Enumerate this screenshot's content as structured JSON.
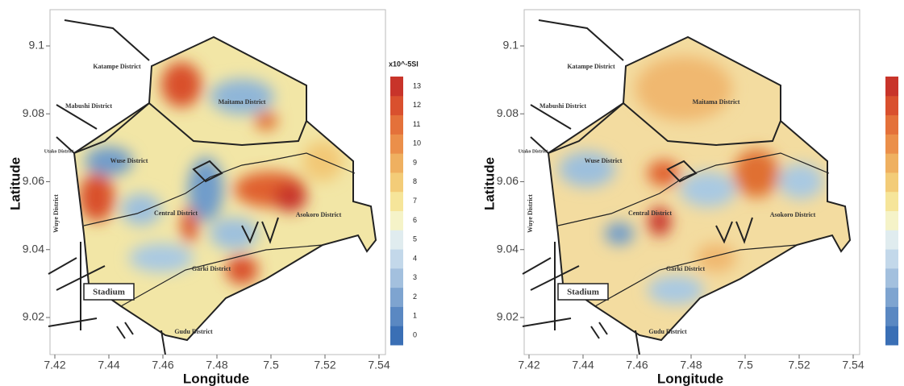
{
  "panels": [
    {
      "x_label": "Longitude",
      "y_label": "Latitude",
      "x_ticks": [
        7.42,
        7.44,
        7.46,
        7.48,
        7.5,
        7.52,
        7.54
      ],
      "y_ticks": [
        9.02,
        9.04,
        9.06,
        9.08,
        9.1
      ],
      "districts": [
        "Katampe District",
        "Mabushi District",
        "Maitama District",
        "Utako District",
        "Wuse District",
        "Central District",
        "Asokoro District",
        "Garki District",
        "Wuye District",
        "Gudu District"
      ],
      "landmark": "Stadium",
      "colorbar": {
        "title": "x10^-5SI",
        "ticks": [
          0,
          1,
          2,
          3,
          4,
          5,
          6,
          7,
          8,
          9,
          10,
          11,
          12,
          13
        ]
      }
    },
    {
      "x_label": "Longitude",
      "y_label": "Latitude",
      "x_ticks": [
        7.42,
        7.44,
        7.46,
        7.48,
        7.5,
        7.52,
        7.54
      ],
      "y_ticks": [
        9.02,
        9.04,
        9.06,
        9.08,
        9.1
      ],
      "districts": [
        "Katampe District",
        "Mabushi District",
        "Maitama District",
        "Utako District",
        "Wuse District",
        "Central District",
        "Asokoro District",
        "Garki District",
        "Wuye District",
        "Gudu District"
      ],
      "landmark": "Stadium"
    }
  ]
}
